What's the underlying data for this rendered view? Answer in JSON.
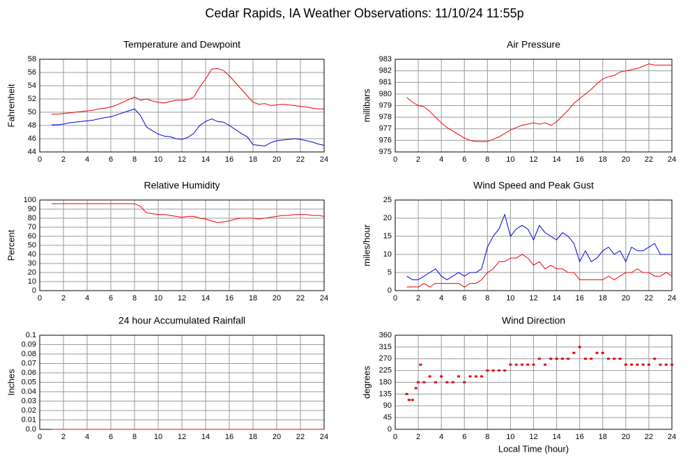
{
  "title": "Cedar Rapids, IA Weather Observations: 11/10/24 11:55p",
  "chart_data": [
    {
      "type": "line",
      "title": "Temperature and Dewpoint",
      "ylabel": "Fahrenheit",
      "xlim": [
        0,
        24
      ],
      "xticks": [
        0,
        2,
        4,
        6,
        8,
        10,
        12,
        14,
        16,
        18,
        20,
        22,
        24
      ],
      "ylim": [
        44,
        58
      ],
      "yticks": [
        44,
        46,
        48,
        50,
        52,
        54,
        56,
        58
      ],
      "grid": true,
      "x": [
        1,
        1.5,
        2,
        2.5,
        3,
        3.5,
        4,
        4.5,
        5,
        5.5,
        6,
        6.5,
        7,
        7.5,
        8,
        8.5,
        9,
        9.5,
        10,
        10.5,
        11,
        11.5,
        12,
        12.5,
        13,
        13.5,
        14,
        14.5,
        15,
        15.5,
        16,
        16.5,
        17,
        17.5,
        18,
        18.5,
        19,
        19.5,
        20,
        20.5,
        21,
        21.5,
        22,
        22.5,
        23,
        23.5,
        24
      ],
      "series": [
        {
          "color": "#ee0000",
          "values": [
            49.7,
            49.7,
            49.8,
            49.9,
            50.0,
            50.1,
            50.2,
            50.3,
            50.5,
            50.6,
            50.8,
            51.1,
            51.5,
            51.9,
            52.3,
            51.8,
            52.0,
            51.7,
            51.5,
            51.4,
            51.6,
            51.8,
            51.8,
            51.9,
            52.3,
            53.8,
            55.0,
            56.5,
            56.6,
            56.3,
            55.5,
            54.5,
            53.5,
            52.5,
            51.5,
            51.2,
            51.3,
            51.0,
            51.1,
            51.2,
            51.1,
            51.0,
            50.9,
            50.8,
            50.6,
            50.5,
            50.5
          ]
        },
        {
          "color": "#0000dd",
          "values": [
            48.1,
            48.1,
            48.2,
            48.4,
            48.5,
            48.6,
            48.7,
            48.8,
            49.0,
            49.2,
            49.3,
            49.6,
            49.9,
            50.2,
            50.5,
            49.5,
            47.8,
            47.2,
            46.7,
            46.4,
            46.3,
            46.0,
            45.9,
            46.2,
            46.8,
            48.0,
            48.6,
            49.0,
            48.6,
            48.5,
            48.0,
            47.4,
            46.8,
            46.3,
            45.1,
            45.0,
            44.9,
            45.4,
            45.7,
            45.8,
            45.9,
            46.0,
            45.9,
            45.7,
            45.5,
            45.2,
            45.0
          ]
        }
      ]
    },
    {
      "type": "line",
      "title": "Air Pressure",
      "ylabel": "millibars",
      "xlim": [
        0,
        24
      ],
      "xticks": [
        0,
        2,
        4,
        6,
        8,
        10,
        12,
        14,
        16,
        18,
        20,
        22,
        24
      ],
      "ylim": [
        975,
        983
      ],
      "yticks": [
        975,
        976,
        977,
        978,
        979,
        980,
        981,
        982,
        983
      ],
      "grid": true,
      "x": [
        1,
        1.5,
        2,
        2.5,
        3,
        3.5,
        4,
        4.5,
        5,
        5.5,
        6,
        6.5,
        7,
        7.5,
        8,
        8.5,
        9,
        9.5,
        10,
        10.5,
        11,
        11.5,
        12,
        12.5,
        13,
        13.5,
        14,
        14.5,
        15,
        15.5,
        16,
        16.5,
        17,
        17.5,
        18,
        18.5,
        19,
        19.5,
        20,
        20.5,
        21,
        21.5,
        22,
        22.5,
        23,
        23.5,
        24
      ],
      "series": [
        {
          "color": "#ee0000",
          "values": [
            979.7,
            979.3,
            979.0,
            978.9,
            978.5,
            978.0,
            977.5,
            977.1,
            976.8,
            976.5,
            976.2,
            976.0,
            975.9,
            975.9,
            975.9,
            976.1,
            976.3,
            976.6,
            976.9,
            977.1,
            977.3,
            977.4,
            977.5,
            977.4,
            977.5,
            977.3,
            977.6,
            978.1,
            978.6,
            979.2,
            979.6,
            980.0,
            980.4,
            980.9,
            981.3,
            981.5,
            981.6,
            981.9,
            982.0,
            982.1,
            982.2,
            982.4,
            982.6,
            982.5,
            982.5,
            982.5,
            982.5
          ]
        }
      ]
    },
    {
      "type": "line",
      "title": "Relative Humidity",
      "ylabel": "Percent",
      "xlim": [
        0,
        24
      ],
      "xticks": [
        0,
        2,
        4,
        6,
        8,
        10,
        12,
        14,
        16,
        18,
        20,
        22,
        24
      ],
      "ylim": [
        0,
        100
      ],
      "yticks": [
        0,
        10,
        20,
        30,
        40,
        50,
        60,
        70,
        80,
        90,
        100
      ],
      "grid": true,
      "x": [
        1,
        1.5,
        2,
        2.5,
        3,
        3.5,
        4,
        4.5,
        5,
        5.5,
        6,
        6.5,
        7,
        7.5,
        8,
        8.5,
        9,
        9.5,
        10,
        10.5,
        11,
        11.5,
        12,
        12.5,
        13,
        13.5,
        14,
        14.5,
        15,
        15.5,
        16,
        16.5,
        17,
        17.5,
        18,
        18.5,
        19,
        19.5,
        20,
        20.5,
        21,
        21.5,
        22,
        22.5,
        23,
        23.5,
        24
      ],
      "series": [
        {
          "color": "#ee0000",
          "values": [
            96,
            96,
            96,
            96,
            96,
            96,
            96,
            96,
            96,
            96,
            96,
            96,
            96,
            96,
            96,
            93,
            86,
            85,
            84,
            84,
            83,
            82,
            81,
            82,
            82,
            80,
            79,
            77,
            75,
            76,
            77,
            79,
            80,
            80,
            80,
            79,
            80,
            81,
            82,
            83,
            83,
            84,
            84,
            84,
            83,
            83,
            82
          ]
        }
      ]
    },
    {
      "type": "line",
      "title": "Wind Speed and Peak Gust",
      "ylabel": "miles/hour",
      "xlim": [
        0,
        24
      ],
      "xticks": [
        0,
        2,
        4,
        6,
        8,
        10,
        12,
        14,
        16,
        18,
        20,
        22,
        24
      ],
      "ylim": [
        0,
        25
      ],
      "yticks": [
        0,
        5,
        10,
        15,
        20,
        25
      ],
      "grid": true,
      "x": [
        1,
        1.5,
        2,
        2.5,
        3,
        3.5,
        4,
        4.5,
        5,
        5.5,
        6,
        6.5,
        7,
        7.5,
        8,
        8.5,
        9,
        9.5,
        10,
        10.5,
        11,
        11.5,
        12,
        12.5,
        13,
        13.5,
        14,
        14.5,
        15,
        15.5,
        16,
        16.5,
        17,
        17.5,
        18,
        18.5,
        19,
        19.5,
        20,
        20.5,
        21,
        21.5,
        22,
        22.5,
        23,
        23.5,
        24
      ],
      "series": [
        {
          "color": "#0000dd",
          "values": [
            4,
            3,
            3,
            4,
            5,
            6,
            4,
            3,
            4,
            5,
            4,
            5,
            5,
            6,
            12,
            15,
            17,
            21,
            15,
            17,
            18,
            17,
            14,
            18,
            16,
            15,
            14,
            16,
            15,
            13,
            8,
            11,
            8,
            9,
            11,
            12,
            10,
            11,
            8,
            12,
            11,
            11,
            12,
            13,
            10,
            10,
            10
          ]
        },
        {
          "color": "#ee0000",
          "values": [
            1,
            1,
            1,
            2,
            1,
            2,
            2,
            2,
            2,
            2,
            1,
            2,
            2,
            3,
            5,
            6,
            8,
            8,
            9,
            9,
            10,
            9,
            7,
            8,
            6,
            7,
            6,
            6,
            5,
            5,
            3,
            3,
            3,
            3,
            3,
            4,
            3,
            4,
            5,
            5,
            6,
            5,
            5,
            4,
            4,
            5,
            4
          ]
        }
      ]
    },
    {
      "type": "line",
      "title": "24 hour Accumulated Rainfall",
      "ylabel": "Inches",
      "xlim": [
        0,
        24
      ],
      "xticks": [
        0,
        2,
        4,
        6,
        8,
        10,
        12,
        14,
        16,
        18,
        20,
        22,
        24
      ],
      "ylim": [
        0,
        0.1
      ],
      "yticks": [
        {
          "value": 0,
          "label": "0.0"
        },
        0.01,
        0.02,
        0.03,
        0.04,
        0.05,
        0.06,
        0.07,
        0.08,
        0.09,
        0.1
      ],
      "grid": true,
      "x": [
        1,
        24
      ],
      "series": [
        {
          "color": "#ee0000",
          "values": [
            0,
            0
          ]
        }
      ]
    },
    {
      "type": "scatter",
      "title": "Wind Direction",
      "ylabel": "degrees",
      "xlabel": "Local Time (hour)",
      "xlim": [
        0,
        24
      ],
      "xticks": [
        0,
        2,
        4,
        6,
        8,
        10,
        12,
        14,
        16,
        18,
        20,
        22,
        24
      ],
      "ylim": [
        0,
        360
      ],
      "yticks": [
        0,
        45,
        90,
        135,
        180,
        225,
        270,
        315,
        360
      ],
      "grid": true,
      "x": [
        1,
        1.2,
        1.5,
        1.8,
        2,
        2.2,
        2.5,
        3,
        3.5,
        4,
        4.5,
        5,
        5.5,
        6,
        6.5,
        7,
        7.5,
        8,
        8.5,
        9,
        9.5,
        10,
        10.5,
        11,
        11.5,
        12,
        12.5,
        13,
        13.5,
        14,
        14.5,
        15,
        15.5,
        16,
        16.5,
        17,
        17.5,
        18,
        18.5,
        19,
        19.5,
        20,
        20.5,
        21,
        21.5,
        22,
        22.5,
        23,
        23.5,
        24
      ],
      "series": [
        {
          "color": "#ee0000",
          "values": [
            135,
            112.5,
            112.5,
            157.5,
            180,
            247.5,
            180,
            202.5,
            180,
            202.5,
            180,
            180,
            202.5,
            180,
            202.5,
            202.5,
            202.5,
            225,
            225,
            225,
            225,
            247.5,
            247.5,
            247.5,
            247.5,
            247.5,
            270,
            247.5,
            270,
            270,
            270,
            270,
            292.5,
            315,
            270,
            270,
            292.5,
            292.5,
            270,
            270,
            270,
            247.5,
            247.5,
            247.5,
            247.5,
            247.5,
            270,
            247.5,
            247.5,
            247.5
          ]
        }
      ]
    }
  ]
}
